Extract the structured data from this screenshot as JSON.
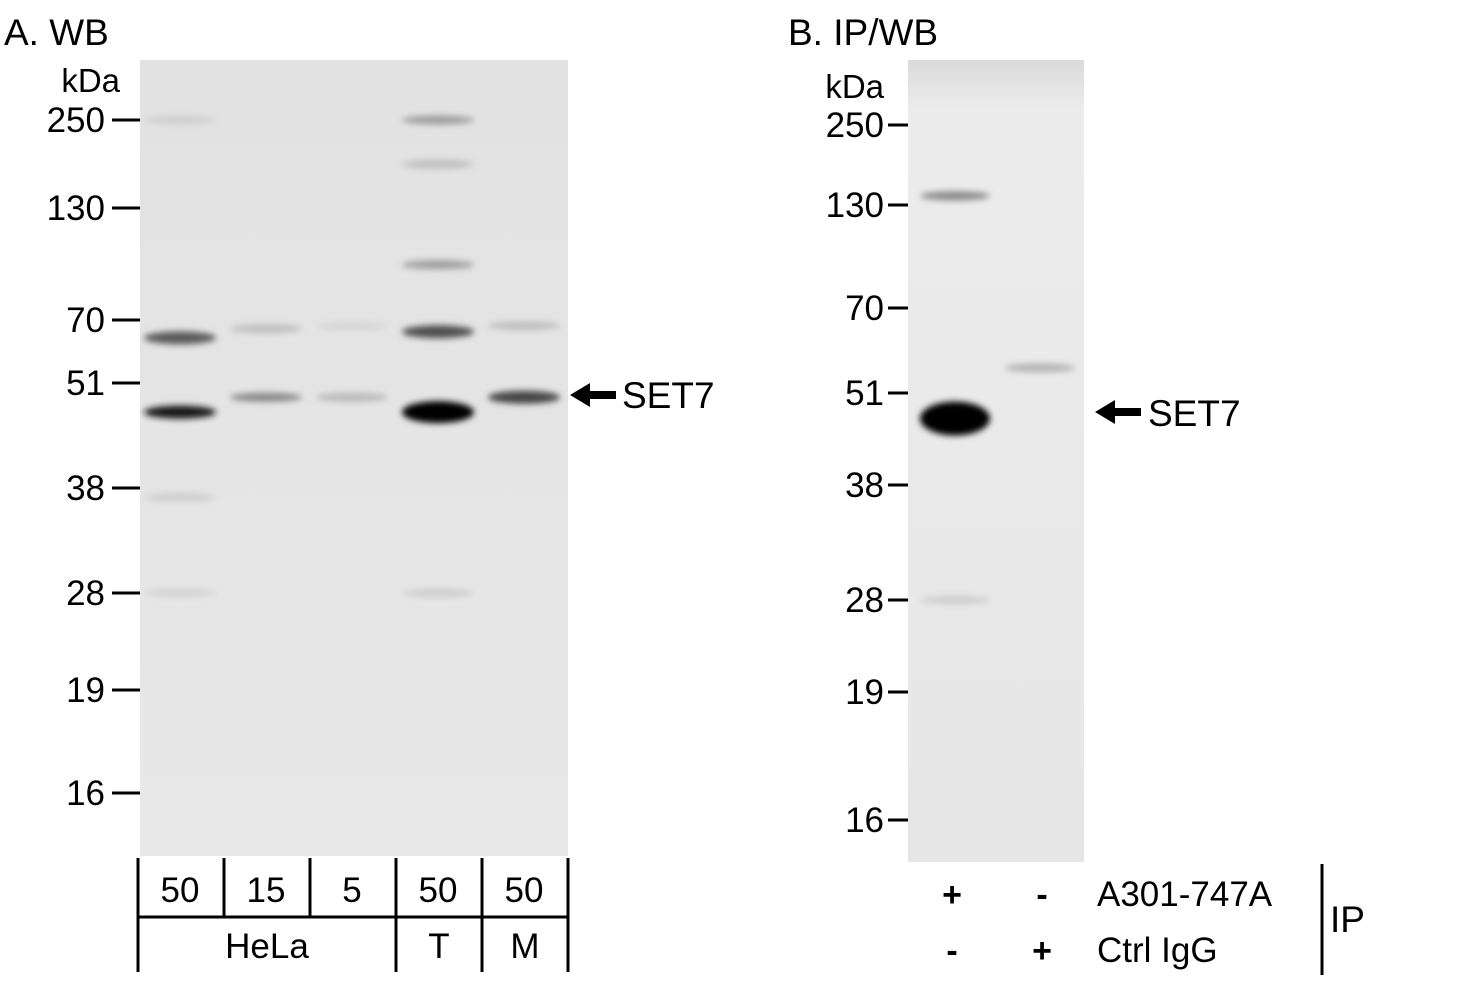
{
  "panel_a": {
    "title": "A. WB",
    "unit": "kDa",
    "markers": [
      "250",
      "130",
      "70",
      "51",
      "38",
      "28",
      "19",
      "16"
    ],
    "target_label": "SET7",
    "lane_amounts": [
      "50",
      "15",
      "5",
      "50",
      "50"
    ],
    "sample_groups": [
      "HeLa",
      "T",
      "M"
    ],
    "lanes": [
      {
        "bands": [
          {
            "kda": 47,
            "intensity": 0.9
          },
          {
            "kda": 64,
            "intensity": 0.6
          },
          {
            "kda": 250,
            "intensity": 0.08
          },
          {
            "kda": 37,
            "intensity": 0.08
          },
          {
            "kda": 28,
            "intensity": 0.06
          }
        ]
      },
      {
        "bands": [
          {
            "kda": 49,
            "intensity": 0.4
          },
          {
            "kda": 67,
            "intensity": 0.15
          }
        ]
      },
      {
        "bands": [
          {
            "kda": 49,
            "intensity": 0.18
          },
          {
            "kda": 68,
            "intensity": 0.05
          }
        ]
      },
      {
        "bands": [
          {
            "kda": 47,
            "intensity": 1.0
          },
          {
            "kda": 66,
            "intensity": 0.65
          },
          {
            "kda": 95,
            "intensity": 0.3
          },
          {
            "kda": 180,
            "intensity": 0.15
          },
          {
            "kda": 250,
            "intensity": 0.3
          },
          {
            "kda": 28,
            "intensity": 0.08
          }
        ]
      },
      {
        "bands": [
          {
            "kda": 49,
            "intensity": 0.7
          },
          {
            "kda": 68,
            "intensity": 0.15
          }
        ]
      }
    ]
  },
  "panel_b": {
    "title": "B. IP/WB",
    "unit": "kDa",
    "markers": [
      "250",
      "130",
      "70",
      "51",
      "38",
      "28",
      "19",
      "16"
    ],
    "target_label": "SET7",
    "lanes": [
      {
        "bands": [
          {
            "kda": 47,
            "intensity": 1.0
          },
          {
            "kda": 140,
            "intensity": 0.4
          },
          {
            "kda": 28,
            "intensity": 0.08
          }
        ]
      },
      {
        "bands": [
          {
            "kda": 56,
            "intensity": 0.2
          }
        ]
      }
    ],
    "rows": [
      {
        "label": "A301-747A",
        "signs": [
          "+",
          "-"
        ]
      },
      {
        "label": "Ctrl IgG",
        "signs": [
          "-",
          "+"
        ]
      }
    ],
    "group_label": "IP"
  }
}
